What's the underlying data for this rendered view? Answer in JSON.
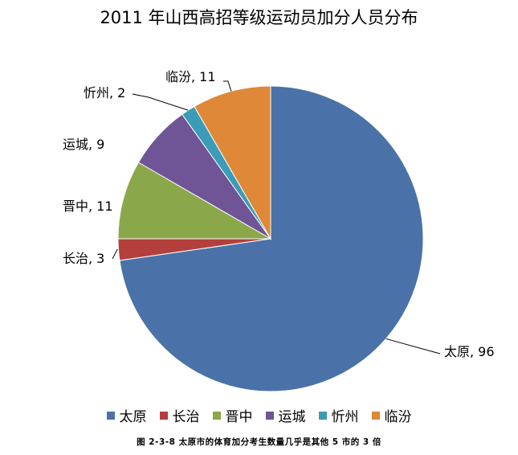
{
  "title": "2011 年山西高招等级运动员加分人员分布",
  "caption": "图 2-3-8  太原市的体育加分考生数量几乎是其他 5 市的 3 倍",
  "chart_data": {
    "type": "pie",
    "title": "2011 年山西高招等级运动员加分人员分布",
    "categories": [
      "太原",
      "长治",
      "晋中",
      "运城",
      "忻州",
      "临汾"
    ],
    "values": [
      96,
      3,
      11,
      9,
      2,
      11
    ],
    "colors": [
      "#4a72a8",
      "#b3403d",
      "#8aa84a",
      "#6f5496",
      "#3b9cb8",
      "#de8838"
    ],
    "data_labels": [
      "太原, 96",
      "长治, 3",
      "晋中, 11",
      "运城, 9",
      "忻州, 2",
      "临汾, 11"
    ],
    "legend_position": "bottom"
  }
}
